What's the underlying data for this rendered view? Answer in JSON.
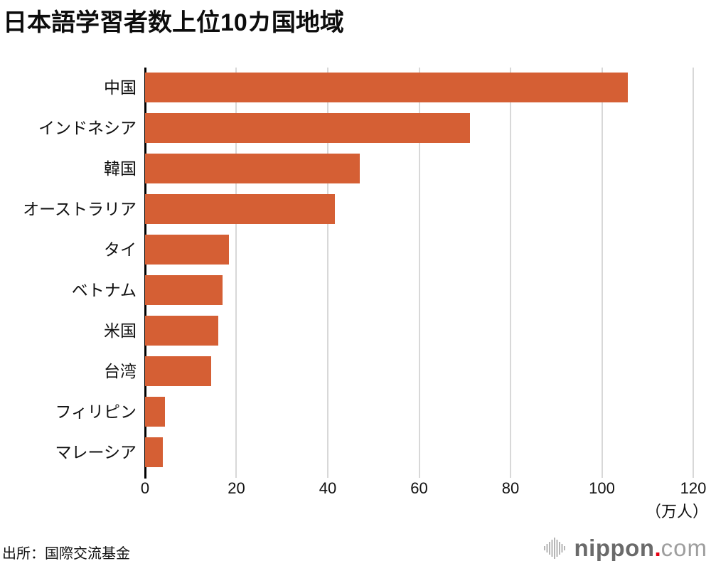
{
  "chart_data": {
    "type": "bar",
    "orientation": "horizontal",
    "title": "日本語学習者数上位10カ国地域",
    "categories": [
      "中国",
      "インドネシア",
      "韓国",
      "オーストラリア",
      "タイ",
      "ベトナム",
      "米国",
      "台湾",
      "フィリピン",
      "マレーシア"
    ],
    "values": [
      105.7,
      71.2,
      47.0,
      41.5,
      18.4,
      17.0,
      16.1,
      14.4,
      4.4,
      3.9
    ],
    "x_ticks": [
      0,
      20,
      40,
      60,
      80,
      100,
      120
    ],
    "xlim": [
      0,
      120
    ],
    "unit_label": "（万人）",
    "ylabel": "",
    "xlabel": "",
    "legend": "none",
    "grid": true,
    "bar_color": "#d55f34",
    "gridline_color": "#d8d8d8",
    "axis_color": "#000000",
    "source": "出所：国際交流基金"
  },
  "branding": {
    "name": "nippon",
    "dot": ".",
    "tld": "com",
    "name_color": "#6a6a6a",
    "dot_color": "#e60012",
    "tld_color": "#9e9e9e",
    "waveform_color": "#b5b5b5"
  }
}
